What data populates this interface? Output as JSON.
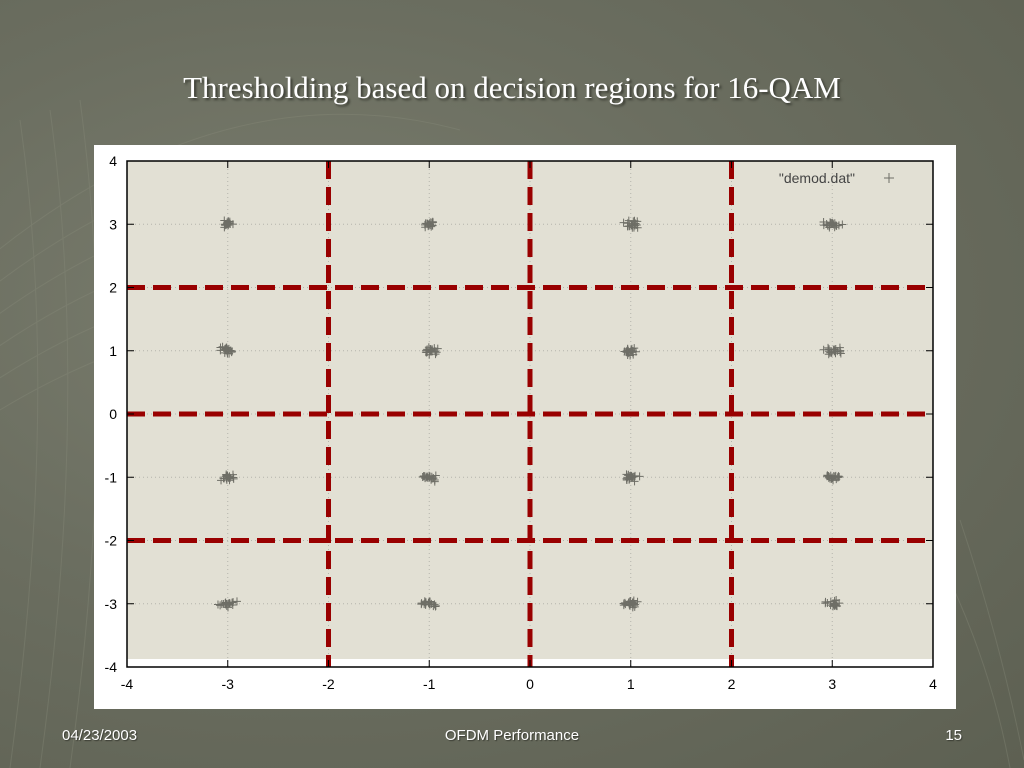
{
  "slide": {
    "title": "Thresholding based on decision regions for 16-QAM",
    "footer_date": "04/23/2003",
    "footer_center": "OFDM Performance",
    "page_number": "15"
  },
  "colors": {
    "plot_background": "#e2e0d4",
    "threshold": "#990000",
    "points": "#6e6e66",
    "grid": "#b4b4ac"
  },
  "chart_data": {
    "type": "scatter",
    "title": "",
    "xlabel": "",
    "ylabel": "",
    "xlim": [
      -4,
      4
    ],
    "ylim": [
      -4,
      4
    ],
    "x_ticks": [
      -4,
      -3,
      -2,
      -1,
      0,
      1,
      2,
      3,
      4
    ],
    "y_ticks": [
      -4,
      -3,
      -2,
      -1,
      0,
      1,
      2,
      3,
      4
    ],
    "grid": true,
    "legend": {
      "position": "top-right",
      "entries": [
        "\"demod.dat\""
      ]
    },
    "series": [
      {
        "name": "\"demod.dat\"",
        "marker": "+",
        "cluster_centers": [
          [
            -3,
            3
          ],
          [
            -1,
            3
          ],
          [
            1,
            3
          ],
          [
            3,
            3
          ],
          [
            -3,
            1
          ],
          [
            -1,
            1
          ],
          [
            1,
            1
          ],
          [
            3,
            1
          ],
          [
            -3,
            -1
          ],
          [
            -1,
            -1
          ],
          [
            1,
            -1
          ],
          [
            3,
            -1
          ],
          [
            -3,
            -3
          ],
          [
            -1,
            -3
          ],
          [
            1,
            -3
          ],
          [
            3,
            -3
          ]
        ],
        "points_per_cluster": 20,
        "spread": 0.08
      }
    ],
    "threshold_lines": {
      "style": "dashed",
      "vertical_x": [
        -2,
        0,
        2
      ],
      "horizontal_y": [
        -2,
        0,
        2
      ]
    }
  }
}
